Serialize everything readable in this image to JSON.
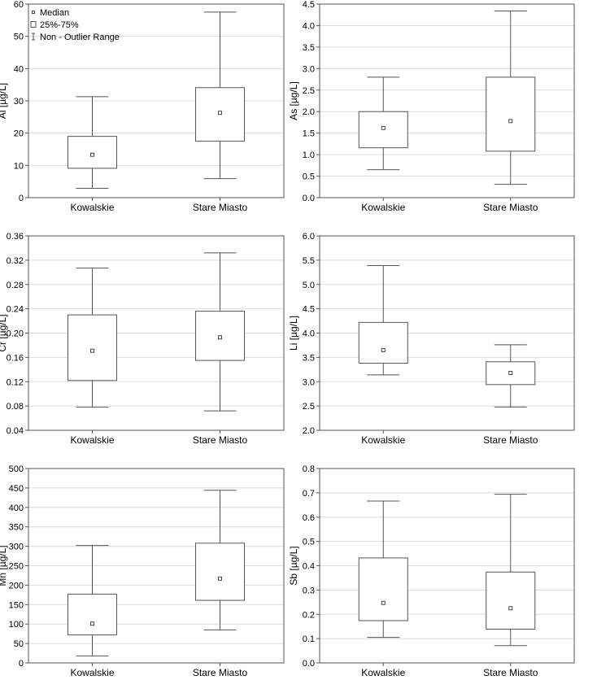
{
  "chart_data": [
    {
      "type": "box",
      "ylabel": "Al [µg/L]",
      "ylim": [
        0,
        60
      ],
      "yticks": [
        "0",
        "10",
        "20",
        "30",
        "40",
        "50",
        "60"
      ],
      "categories": [
        "Kowalskie",
        "Stare Miasto"
      ],
      "boxes": [
        {
          "category": "Kowalskie",
          "median": 13.3,
          "q1": 9.1,
          "q3": 19.0,
          "min": 2.9,
          "max": 31.3
        },
        {
          "category": "Stare Miasto",
          "median": 26.3,
          "q1": 17.5,
          "q3": 34.1,
          "min": 5.9,
          "max": 57.5
        }
      ],
      "legend": {
        "median": "Median",
        "box": "25%-75%",
        "range": "Non - Outlier Range"
      }
    },
    {
      "type": "box",
      "ylabel": "As [µg/L]",
      "ylim": [
        0,
        4.5
      ],
      "yticks": [
        "0.0",
        "0.5",
        "1.0",
        "1.5",
        "2.0",
        "2.5",
        "3.0",
        "3.5",
        "4.0",
        "4.5"
      ],
      "categories": [
        "Kowalskie",
        "Stare Miasto"
      ],
      "boxes": [
        {
          "category": "Kowalskie",
          "median": 1.62,
          "q1": 1.16,
          "q3": 2.0,
          "min": 0.65,
          "max": 2.8
        },
        {
          "category": "Stare Miasto",
          "median": 1.78,
          "q1": 1.08,
          "q3": 2.8,
          "min": 0.31,
          "max": 4.34
        }
      ]
    },
    {
      "type": "box",
      "ylabel": "Cr [µg/L]",
      "ylim": [
        0.04,
        0.36
      ],
      "yticks": [
        "0.04",
        "0.08",
        "0.12",
        "0.16",
        "0.20",
        "0.24",
        "0.28",
        "0.32",
        "0.36"
      ],
      "categories": [
        "Kowalskie",
        "Stare Miasto"
      ],
      "boxes": [
        {
          "category": "Kowalskie",
          "median": 0.171,
          "q1": 0.122,
          "q3": 0.23,
          "min": 0.078,
          "max": 0.307
        },
        {
          "category": "Stare Miasto",
          "median": 0.193,
          "q1": 0.155,
          "q3": 0.236,
          "min": 0.072,
          "max": 0.332
        }
      ]
    },
    {
      "type": "box",
      "ylabel": "Li [µg/L]",
      "ylim": [
        2.0,
        6.0
      ],
      "yticks": [
        "2.0",
        "2.5",
        "3.0",
        "3.5",
        "4.0",
        "4.5",
        "5.0",
        "5.5",
        "6.0"
      ],
      "categories": [
        "Kowalskie",
        "Stare Miasto"
      ],
      "boxes": [
        {
          "category": "Kowalskie",
          "median": 3.65,
          "q1": 3.38,
          "q3": 4.22,
          "min": 3.14,
          "max": 5.39
        },
        {
          "category": "Stare Miasto",
          "median": 3.18,
          "q1": 2.94,
          "q3": 3.41,
          "min": 2.48,
          "max": 3.76
        }
      ]
    },
    {
      "type": "box",
      "ylabel": "Mn [µg/L]",
      "ylim": [
        0,
        500
      ],
      "yticks": [
        "0",
        "50",
        "100",
        "150",
        "200",
        "250",
        "300",
        "350",
        "400",
        "450",
        "500"
      ],
      "categories": [
        "Kowalskie",
        "Stare Miasto"
      ],
      "boxes": [
        {
          "category": "Kowalskie",
          "median": 101,
          "q1": 72,
          "q3": 177,
          "min": 18,
          "max": 302
        },
        {
          "category": "Stare Miasto",
          "median": 217,
          "q1": 161,
          "q3": 308,
          "min": 85,
          "max": 444
        }
      ]
    },
    {
      "type": "box",
      "ylabel": "Sb [µg/L]",
      "ylim": [
        0,
        0.8
      ],
      "yticks": [
        "0.0",
        "0.1",
        "0.2",
        "0.3",
        "0.4",
        "0.5",
        "0.6",
        "0.7",
        "0.8"
      ],
      "categories": [
        "Kowalskie",
        "Stare Miasto"
      ],
      "boxes": [
        {
          "category": "Kowalskie",
          "median": 0.247,
          "q1": 0.174,
          "q3": 0.432,
          "min": 0.105,
          "max": 0.666
        },
        {
          "category": "Stare Miasto",
          "median": 0.225,
          "q1": 0.139,
          "q3": 0.374,
          "min": 0.071,
          "max": 0.694
        }
      ]
    }
  ]
}
